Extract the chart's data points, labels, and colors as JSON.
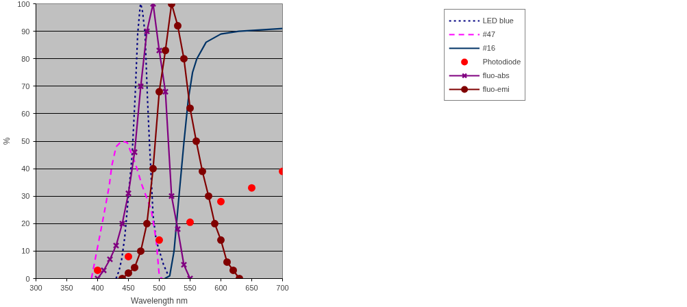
{
  "chart_data": {
    "type": "line",
    "xlabel": "Wavelength nm",
    "ylabel": "%",
    "xlim": [
      300,
      700
    ],
    "xticks": [
      300,
      350,
      400,
      450,
      500,
      550,
      600,
      650,
      700
    ],
    "ylim": [
      0,
      100
    ],
    "yticks": [
      0,
      10,
      20,
      30,
      40,
      50,
      60,
      70,
      80,
      90,
      100
    ],
    "grid": "y",
    "legend": "top right",
    "series": [
      {
        "name": "LED blue",
        "color": "#000080",
        "line_style": "dotted",
        "marker": "none",
        "x": [
          430,
          435,
          439,
          444,
          448,
          452,
          456,
          461,
          465,
          469,
          470,
          473,
          477,
          481,
          484,
          488,
          490,
          495,
          507,
          515
        ],
        "values": [
          0,
          3,
          7,
          15,
          25,
          35,
          45,
          67,
          89,
          99,
          100,
          97,
          89,
          65,
          50,
          32,
          23,
          14,
          5,
          1
        ]
      },
      {
        "name": "#47",
        "color": "#ff00ff",
        "line_style": "dashed",
        "marker": "none",
        "x": [
          390,
          410,
          419,
          423,
          430,
          439,
          448,
          461,
          472,
          487,
          495,
          500,
          504,
          506
        ],
        "values": [
          0,
          23,
          34,
          41,
          48,
          50,
          49.5,
          42,
          34,
          25,
          14,
          1,
          0,
          0
        ]
      },
      {
        "name": "#16",
        "color": "#003366",
        "line_style": "solid",
        "marker": "none",
        "x": [
          509,
          517,
          524,
          531,
          540,
          547,
          554,
          561,
          576,
          592,
          600,
          629,
          700
        ],
        "values": [
          0,
          1,
          10,
          27.5,
          49.5,
          65,
          75,
          80,
          86,
          88,
          89,
          90,
          91
        ]
      },
      {
        "name": "Photodiode",
        "type": "scatter",
        "color": "#ff0000",
        "marker": "circle",
        "x": [
          400,
          450,
          500,
          550,
          600,
          650,
          700
        ],
        "values": [
          3,
          8,
          14,
          20.5,
          28,
          33,
          39
        ]
      },
      {
        "name": "fluo-abs",
        "color": "#800080",
        "line_style": "solid",
        "marker": "cross",
        "x": [
          400,
          410,
          420,
          430,
          440,
          450,
          460,
          470,
          480,
          490,
          500,
          510,
          520,
          530,
          540,
          550
        ],
        "values": [
          0,
          3,
          7,
          12,
          20,
          31,
          46,
          70,
          90,
          100,
          83,
          68,
          30,
          18,
          5,
          0
        ]
      },
      {
        "name": "fluo-emi",
        "color": "#800000",
        "line_style": "solid",
        "marker": "circle",
        "x": [
          440,
          450,
          460,
          470,
          480,
          490,
          500,
          510,
          520,
          530,
          540,
          550,
          560,
          570,
          580,
          590,
          600,
          610,
          620,
          630
        ],
        "values": [
          0,
          2,
          4,
          10,
          20,
          40,
          68,
          83,
          100,
          92,
          80,
          62,
          50,
          39,
          30,
          20,
          14,
          6,
          3,
          0
        ]
      }
    ]
  }
}
